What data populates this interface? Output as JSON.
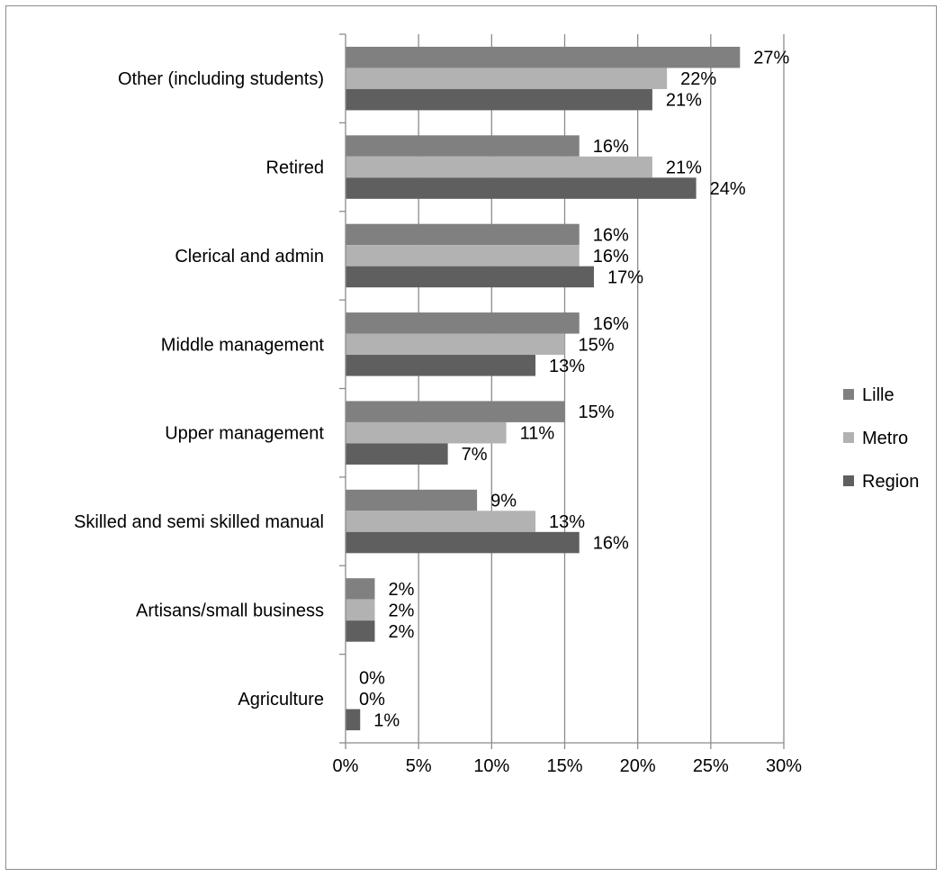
{
  "chart_data": {
    "type": "bar",
    "orientation": "horizontal",
    "title": "",
    "xlabel": "",
    "ylabel": "",
    "categories": [
      "Other (including students)",
      "Retired",
      "Clerical and admin",
      "Middle management",
      "Upper management",
      "Skilled and semi skilled manual",
      "Artisans/small business",
      "Agriculture"
    ],
    "series": [
      {
        "name": "Lille",
        "color": "#808080",
        "values": [
          27,
          16,
          16,
          16,
          15,
          9,
          2,
          0
        ],
        "labels": [
          "27%",
          "16%",
          "16%",
          "16%",
          "15%",
          "9%",
          "2%",
          "0%"
        ]
      },
      {
        "name": "Metro",
        "color": "#b2b2b2",
        "values": [
          22,
          21,
          16,
          15,
          11,
          13,
          2,
          0
        ],
        "labels": [
          "22%",
          "21%",
          "16%",
          "15%",
          "11%",
          "13%",
          "2%",
          "0%"
        ]
      },
      {
        "name": "Region",
        "color": "#5f5f5f",
        "values": [
          21,
          24,
          17,
          13,
          7,
          16,
          2,
          1
        ],
        "labels": [
          "21%",
          "24%",
          "17%",
          "13%",
          "7%",
          "16%",
          "2%",
          "1%"
        ]
      }
    ],
    "xlim": [
      0,
      30
    ],
    "x_ticks": [
      0,
      5,
      10,
      15,
      20,
      25,
      30
    ],
    "x_tick_labels": [
      "0%",
      "5%",
      "10%",
      "15%",
      "20%",
      "25%",
      "30%"
    ],
    "grid": "vertical",
    "legend_position": "right"
  }
}
